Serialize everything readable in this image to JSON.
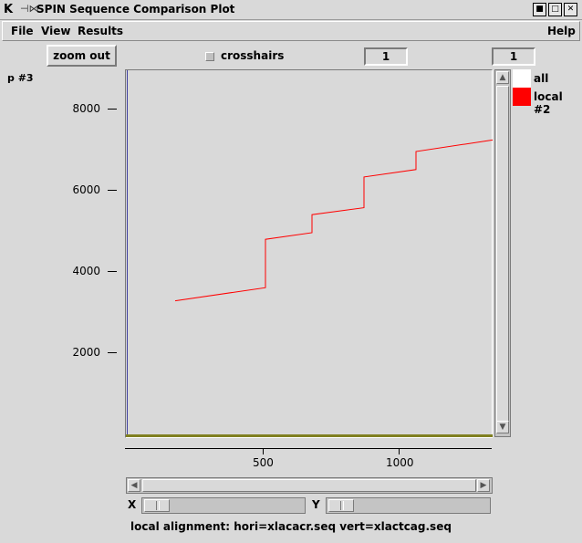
{
  "window": {
    "title": "SPIN Sequence Comparison Plot",
    "icon_name": "k-app-icon",
    "controls": [
      "minimize-icon",
      "maximize-icon",
      "close-icon"
    ]
  },
  "menubar": {
    "file": "File",
    "view": "View",
    "results": "Results",
    "help": "Help"
  },
  "toolbar": {
    "zoom_out_label": "zoom out",
    "crosshairs_label": "crosshairs",
    "crosshairs_checked": false,
    "field_1_value": "1",
    "field_2_value": "1"
  },
  "plot": {
    "plot_label": "p #3",
    "legend": [
      {
        "label": "all",
        "color": "#ffffff"
      },
      {
        "label": "local #2",
        "color": "#ff0000"
      }
    ]
  },
  "chart_data": {
    "type": "line",
    "x_ticks": [
      "500",
      "1000"
    ],
    "y_ticks": [
      "2000",
      "4000",
      "6000",
      "8000"
    ],
    "xlim": [
      0,
      1340
    ],
    "ylim": [
      0,
      8900
    ],
    "series": [
      {
        "name": "local #2",
        "color": "#ff0000",
        "x": [
          180,
          510,
          510,
          680,
          680,
          870,
          870,
          1060,
          1060,
          1340
        ],
        "y": [
          3280,
          3600,
          4780,
          4940,
          5380,
          5550,
          6300,
          6480,
          6920,
          7200
        ]
      }
    ]
  },
  "sliders": {
    "x_label": "X",
    "y_label": "Y"
  },
  "status": {
    "text": "local alignment: hori=xlacacr.seq vert=xlactcag.seq"
  },
  "colors": {
    "background": "#d9d9d9",
    "series": "#ff0000",
    "baseline": "#808020",
    "left_axis": "#4040a0"
  }
}
